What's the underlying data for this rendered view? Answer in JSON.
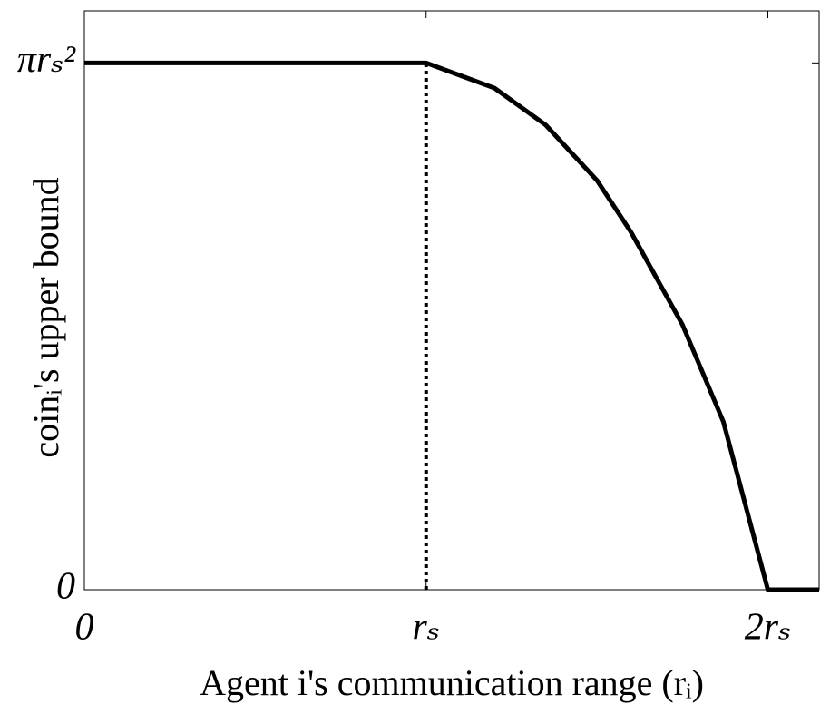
{
  "chart_data": {
    "type": "line",
    "xlabel": "Agent i's communication range (rᵢ)",
    "ylabel": "coinᵢ's upper bound",
    "x": [
      0,
      1,
      1.2,
      1.35,
      1.5,
      1.6,
      1.75,
      1.87,
      2,
      2.15
    ],
    "series": [
      {
        "color": "#000000",
        "values": [
          3.14,
          3.14,
          2.99,
          2.77,
          2.44,
          2.13,
          1.58,
          1.0,
          0,
          0
        ]
      }
    ],
    "xlim": [
      0,
      2.15
    ],
    "ylim": [
      0,
      3.45
    ],
    "xticks": [
      0,
      {
        "value": 1,
        "label": "rₛ"
      },
      {
        "value": 2,
        "label": "2rₛ"
      }
    ],
    "yticks": [
      0,
      {
        "value": 3.14,
        "label": "πrₛ²"
      }
    ],
    "vline": {
      "x": 1,
      "y": 3.14
    }
  }
}
